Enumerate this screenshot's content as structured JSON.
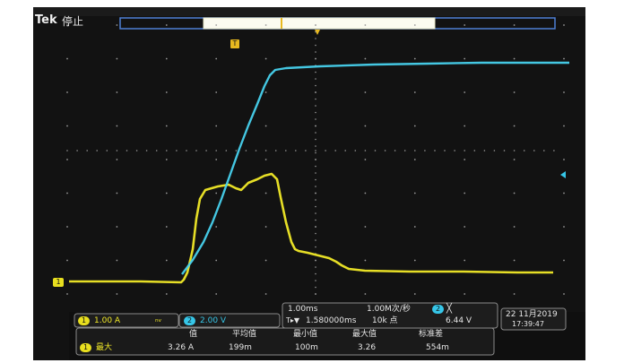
{
  "scope": {
    "brand": "Tek",
    "status": "停止",
    "trigger_marker": "T",
    "ch1_ref": "1",
    "ch1_badge": "1",
    "ch1_scale": "1.00 A",
    "bw_symbol": "ₙᵥ",
    "ch2_badge": "2",
    "ch2_scale": "2.00 V",
    "timebase": "1.00ms",
    "sample_rate": "1.00M次/秒",
    "trigger_badge": "2",
    "trigger_symbol": "╳",
    "trigger_position": "1.580000ms",
    "trigger_prefix": "T▸▼",
    "record_length": "10k 点",
    "trigger_level": "6.44 V",
    "date": "22 11月2019",
    "time": "17:39:47"
  },
  "measurements": {
    "headers": [
      "值",
      "平均值",
      "最小值",
      "最大值",
      "标准差"
    ],
    "row": {
      "badge": "1",
      "name": "最大",
      "value": "3.26 A",
      "mean": "199m",
      "min": "100m",
      "max": "3.26",
      "stddev": "554m"
    }
  },
  "colors": {
    "ch1": "#f2ea28",
    "ch2": "#36c6e8",
    "trigger": "#e8b91f",
    "background": "#121212"
  }
}
